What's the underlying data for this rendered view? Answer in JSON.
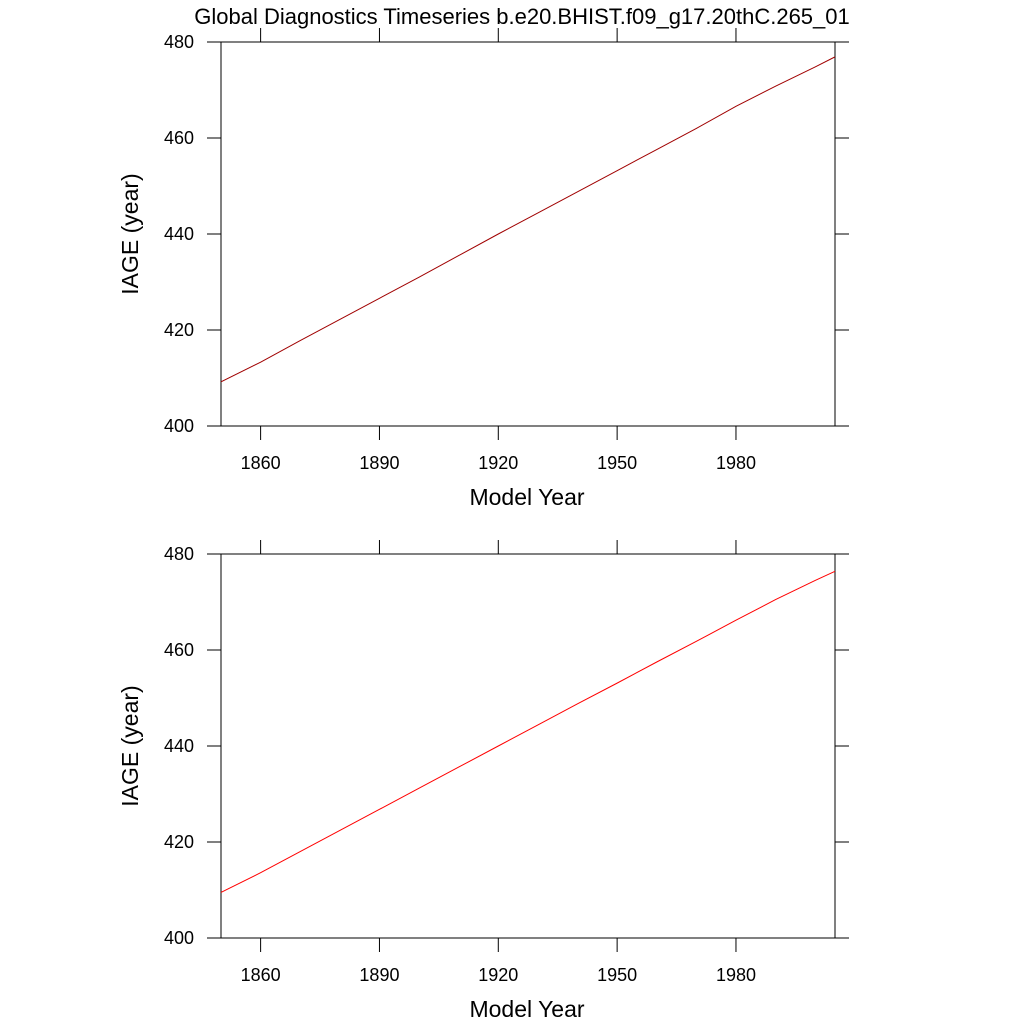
{
  "chart_data": [
    {
      "type": "line",
      "title": "Global Diagnostics Timeseries b.e20.BHIST.f09_g17.20thC.265_01",
      "xlabel": "Model Year",
      "ylabel": "IAGE (year)",
      "x": [
        1850,
        1860,
        1870,
        1880,
        1890,
        1900,
        1910,
        1920,
        1930,
        1940,
        1950,
        1960,
        1970,
        1980,
        1990,
        2000,
        2005
      ],
      "series": [
        {
          "color": "#a00000",
          "values": [
            409.2,
            413.3,
            417.8,
            422.2,
            426.6,
            431.0,
            435.5,
            440.0,
            444.4,
            448.8,
            453.2,
            457.6,
            462.0,
            466.6,
            470.8,
            474.8,
            476.9
          ]
        }
      ],
      "xlim": [
        1850,
        2005
      ],
      "xticks": [
        1860,
        1890,
        1920,
        1950,
        1980
      ],
      "ylim": [
        400,
        480
      ],
      "yticks": [
        400,
        420,
        440,
        460,
        480
      ]
    },
    {
      "type": "line",
      "xlabel": "Model Year",
      "ylabel": "IAGE (year)",
      "x": [
        1850,
        1860,
        1870,
        1880,
        1890,
        1900,
        1910,
        1920,
        1930,
        1940,
        1950,
        1960,
        1970,
        1980,
        1990,
        2000,
        2005
      ],
      "series": [
        {
          "color": "#ff0000",
          "values": [
            409.5,
            413.6,
            418.0,
            422.4,
            426.8,
            431.2,
            435.6,
            440.0,
            444.4,
            448.8,
            453.1,
            457.5,
            461.8,
            466.2,
            470.5,
            474.5,
            476.4
          ]
        }
      ],
      "xlim": [
        1850,
        2005
      ],
      "xticks": [
        1860,
        1890,
        1920,
        1950,
        1980
      ],
      "ylim": [
        400,
        480
      ],
      "yticks": [
        400,
        420,
        440,
        460,
        480
      ]
    }
  ]
}
